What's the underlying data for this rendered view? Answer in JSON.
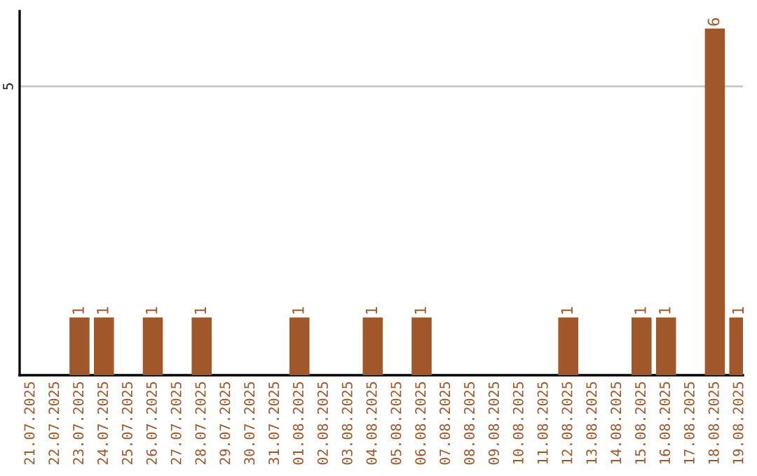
{
  "chart_data": {
    "type": "bar",
    "categories": [
      "21.07.2025",
      "22.07.2025",
      "23.07.2025",
      "24.07.2025",
      "25.07.2025",
      "26.07.2025",
      "27.07.2025",
      "28.07.2025",
      "29.07.2025",
      "30.07.2025",
      "31.07.2025",
      "01.08.2025",
      "02.08.2025",
      "03.08.2025",
      "04.08.2025",
      "05.08.2025",
      "06.08.2025",
      "07.08.2025",
      "08.08.2025",
      "09.08.2025",
      "10.08.2025",
      "11.08.2025",
      "12.08.2025",
      "13.08.2025",
      "14.08.2025",
      "15.08.2025",
      "16.08.2025",
      "17.08.2025",
      "18.08.2025",
      "19.08.2025"
    ],
    "values": [
      null,
      null,
      1,
      1,
      null,
      1,
      null,
      1,
      null,
      null,
      null,
      1,
      null,
      null,
      1,
      null,
      1,
      null,
      null,
      null,
      null,
      null,
      1,
      null,
      null,
      1,
      1,
      null,
      6,
      1
    ],
    "data_labels": true,
    "color": "#a0582a",
    "ylim": [
      0,
      6.3
    ],
    "yticks": [
      5
    ],
    "grid": "y",
    "legend": false
  }
}
